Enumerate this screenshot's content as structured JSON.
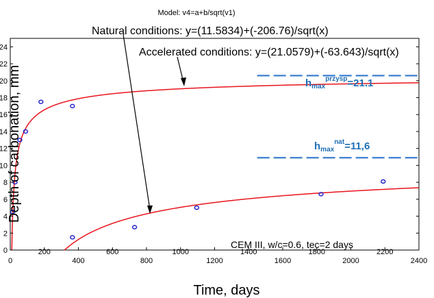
{
  "chart_data": {
    "type": "scatter",
    "model_label": "Model: v4=a+b/sqrt(v1)",
    "xlabel": "Time, days",
    "ylabel": "Depth of carbonation, mm",
    "xlim": [
      0,
      2400
    ],
    "ylim": [
      0,
      25
    ],
    "x_ticks_bottom": [
      0,
      400,
      800,
      1200,
      1600,
      2000,
      2400
    ],
    "x_ticks_top": [
      200,
      600,
      1000,
      1400,
      1800,
      2200
    ],
    "y_ticks": [
      0,
      2,
      4,
      6,
      8,
      10,
      12,
      14,
      16,
      18,
      20,
      22,
      24
    ],
    "grid": false,
    "note": "CEM III, w/c=0.6, tec=2 days",
    "series": [
      {
        "name": "Accelerated conditions",
        "equation": "Accelerated conditions: y=(21.0579)+(-63.643)/sqrt(x)",
        "a": 21.0579,
        "b": -63.643,
        "points": [
          {
            "x": 14,
            "y": 4.5
          },
          {
            "x": 28,
            "y": 8
          },
          {
            "x": 56,
            "y": 13
          },
          {
            "x": 90,
            "y": 14
          },
          {
            "x": 180,
            "y": 17.5
          },
          {
            "x": 365,
            "y": 17
          }
        ],
        "hmax_value": "=21.1",
        "hmax_y": 20.6
      },
      {
        "name": "Natural conditions",
        "equation": "Natural conditions: y=(11.5834)+(-206.76)/sqrt(x)",
        "a": 11.5834,
        "b": -206.76,
        "points": [
          {
            "x": 365,
            "y": 1.5
          },
          {
            "x": 730,
            "y": 2.7
          },
          {
            "x": 1095,
            "y": 5
          },
          {
            "x": 1825,
            "y": 6.6
          },
          {
            "x": 2190,
            "y": 8.1
          }
        ],
        "hmax_value": "=11,6",
        "hmax_y": 10.9
      }
    ],
    "hmax_base": "h",
    "hmax_sub": "max",
    "hmax_sup_accelerated": "przysp",
    "hmax_sup_natural": "nat",
    "colors": {
      "curve": "#e8141c",
      "points": "#1c1ccc",
      "hmax_line": "#3a7fd0",
      "hmax_text": "#1f6fb5"
    }
  }
}
